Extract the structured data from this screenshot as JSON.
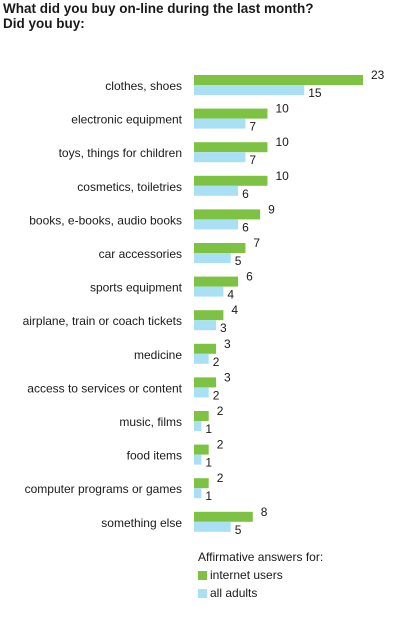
{
  "title_line1": "What did you buy on-line during the last month?",
  "title_line2": "Did you buy:",
  "legend": {
    "heading": "Affirmative answers for:",
    "items": [
      "internet users",
      "all adults"
    ]
  },
  "colors": {
    "internet_users": "#7dc242",
    "all_adults": "#a9e0f5",
    "text": "#1a1a1a"
  },
  "chart_data": {
    "type": "bar",
    "orientation": "horizontal",
    "title": "What did you buy on-line during the last month? Did you buy:",
    "categories": [
      "clothes, shoes",
      "electronic equipment",
      "toys, things for children",
      "cosmetics, toiletries",
      "books, e-books, audio books",
      "car accessories",
      "sports equipment",
      "airplane, train or coach tickets",
      "medicine",
      "access to services or content",
      "music, films",
      "food items",
      "computer programs or games",
      "something else"
    ],
    "series": [
      {
        "name": "internet users",
        "values": [
          23,
          10,
          10,
          10,
          9,
          7,
          6,
          4,
          3,
          3,
          2,
          2,
          2,
          8
        ]
      },
      {
        "name": "all adults",
        "values": [
          15,
          7,
          7,
          6,
          6,
          5,
          4,
          3,
          2,
          2,
          1,
          1,
          1,
          5
        ]
      }
    ],
    "xlim": [
      0,
      23
    ],
    "grid": false,
    "legend_position": "bottom-right"
  }
}
